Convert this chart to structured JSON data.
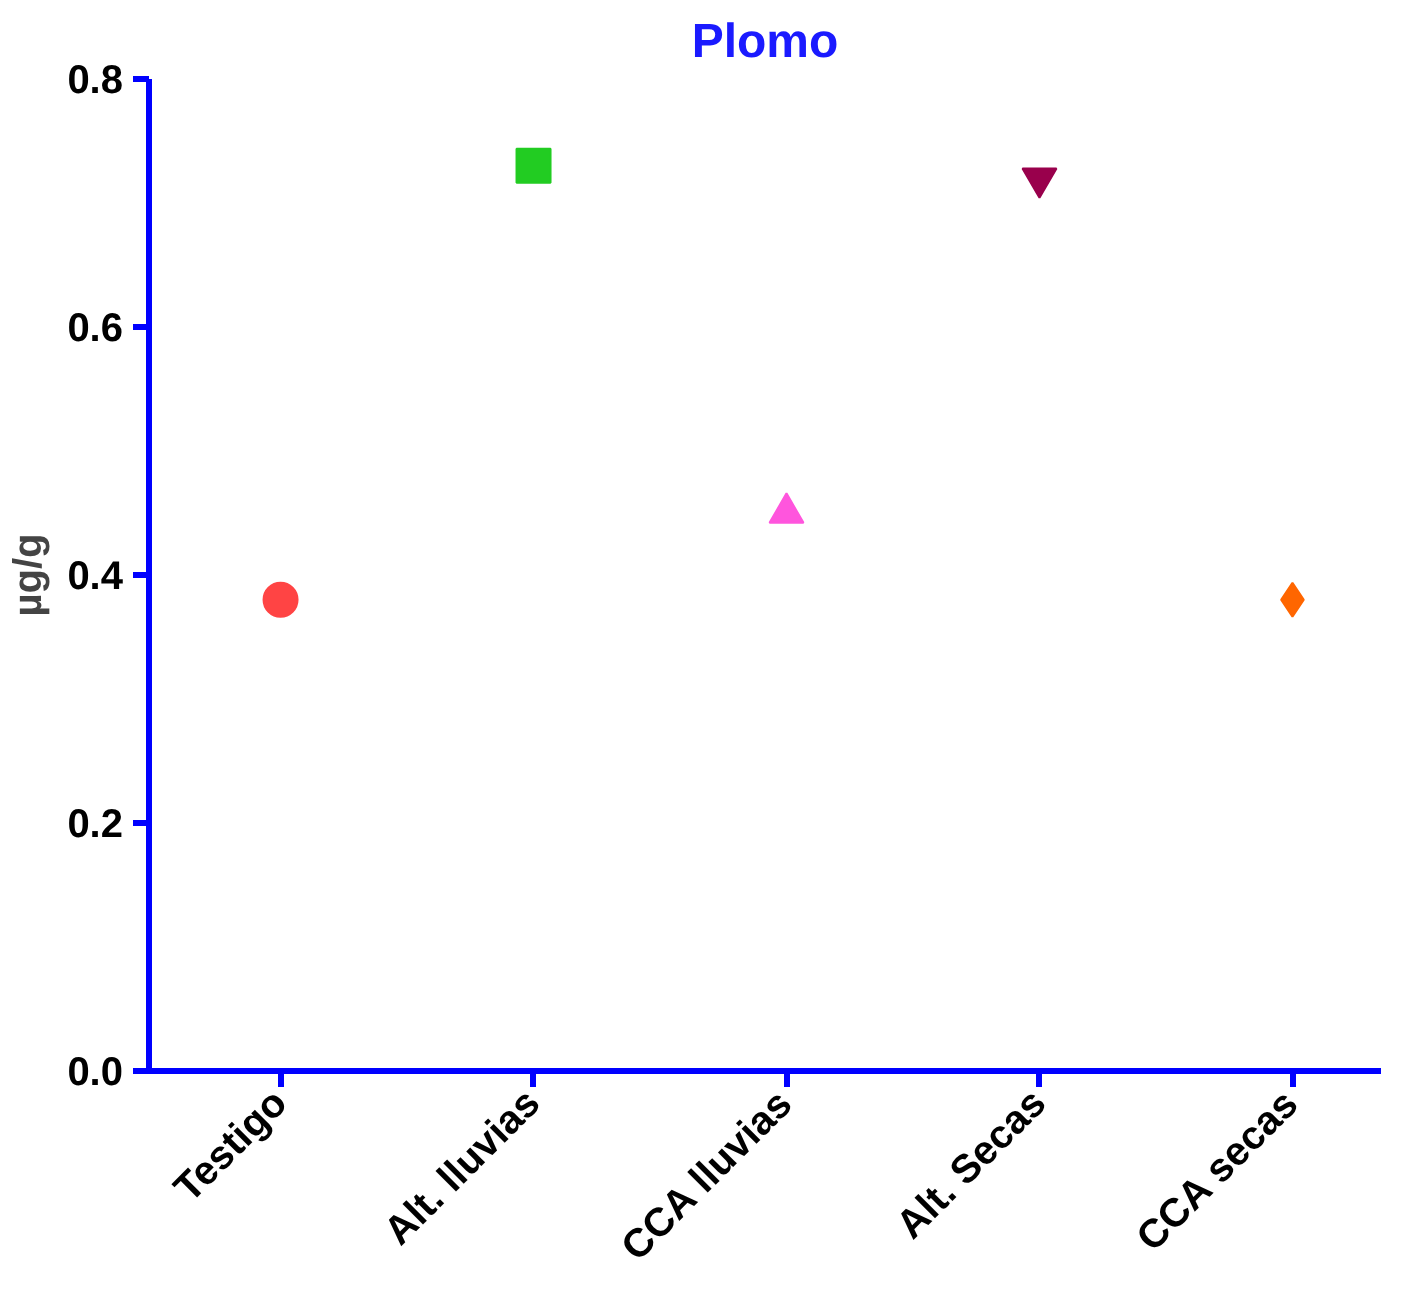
{
  "chart_data": {
    "type": "scatter",
    "title": "Plomo",
    "ylabel": "µg/g",
    "categories": [
      "Testigo",
      "Alt. lluvias",
      "CCA lluvias",
      "Alt. Secas",
      "CCA secas"
    ],
    "ylim": [
      0,
      0.8
    ],
    "yticks": [
      {
        "value": 0,
        "label": "0.0"
      },
      0.2,
      0.4,
      0.6,
      0.8
    ],
    "grid": false,
    "series": [
      {
        "color": "#ff4444",
        "marker": "circle",
        "values": [
          0.38,
          null,
          null,
          null,
          null
        ]
      },
      {
        "color": "#22cc22",
        "marker": "square",
        "values": [
          null,
          0.73,
          null,
          null,
          null
        ]
      },
      {
        "color": "#ff55dd",
        "marker": "triangle",
        "values": [
          null,
          null,
          0.45,
          null,
          null
        ]
      },
      {
        "color": "#99004c",
        "values": [
          null,
          null,
          null,
          0.72,
          null
        ]
      },
      {
        "color": "#ff6600",
        "marker": "diamond",
        "values": [
          null,
          null,
          null,
          null,
          0.38
        ]
      }
    ]
  }
}
